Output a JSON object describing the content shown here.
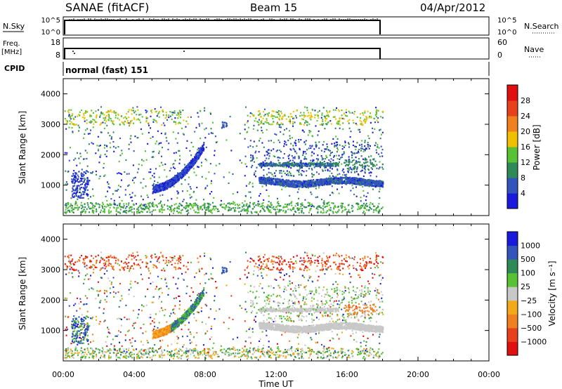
{
  "header": {
    "station": "SANAE (fitACF)",
    "beam": "Beam 15",
    "date": "04/Apr/2012"
  },
  "strips": {
    "nsky": {
      "left_label": "N.Sky",
      "right_label": "N.Search",
      "left_ticks": [
        "10^5",
        "10^0"
      ],
      "right_ticks": [
        "10^5",
        "10^0"
      ]
    },
    "freq": {
      "left_label_1": "Freq.",
      "left_label_2": "[MHz]",
      "right_label": "Nave",
      "left_ticks": [
        "18",
        "8"
      ],
      "right_ticks": [
        "60",
        "0"
      ]
    },
    "cpid": {
      "label": "CPID",
      "value": "normal (fast) 151"
    }
  },
  "colors": {
    "power": [
      "#1a1adc",
      "#3355bb",
      "#2e8b57",
      "#58c234",
      "#f0c000",
      "#f08020",
      "#e8401c",
      "#e01010"
    ],
    "velocity": [
      "#e01010",
      "#e8401c",
      "#f08020",
      "#f2aa1a",
      "#c8c8c8",
      "#58c234",
      "#2e8b57",
      "#3355bb",
      "#1a1adc"
    ]
  },
  "chart_data": [
    {
      "type": "heatmap",
      "title": "Power",
      "ylabel": "Slant Range [km]",
      "xlabel": "Time UT",
      "x_ticks": [
        "00:00",
        "04:00",
        "08:00",
        "12:00",
        "16:00",
        "20:00",
        "00:00"
      ],
      "y_ticks": [
        "1000",
        "2000",
        "3000",
        "4000"
      ],
      "ylim": [
        0,
        4500
      ],
      "xlim_hours": [
        0,
        24
      ],
      "colorbar": {
        "label": "Power [dB]",
        "ticks": [
          "4",
          "8",
          "12",
          "16",
          "20",
          "24",
          "28"
        ]
      },
      "features": [
        {
          "desc": "echo band rising",
          "x_hours": [
            5.0,
            7.9
          ],
          "y_km": [
            900,
            2200
          ]
        },
        {
          "desc": "far band",
          "x_hours": [
            11.0,
            18.0
          ],
          "y_km": [
            1100,
            1300
          ]
        },
        {
          "desc": "upper band",
          "x_hours": [
            11.0,
            15.5
          ],
          "y_km": [
            1700,
            1800
          ]
        }
      ]
    },
    {
      "type": "heatmap",
      "title": "Velocity",
      "ylabel": "Slant Range [km]",
      "xlabel": "Time UT",
      "x_ticks": [
        "00:00",
        "04:00",
        "08:00",
        "12:00",
        "16:00",
        "20:00",
        "00:00"
      ],
      "y_ticks": [
        "1000",
        "2000",
        "3000",
        "4000"
      ],
      "ylim": [
        0,
        4500
      ],
      "xlim_hours": [
        0,
        24
      ],
      "colorbar": {
        "label": "Velocity [m s⁻¹]",
        "ticks": [
          "1000",
          "500",
          "100",
          "25",
          "−25",
          "−100",
          "−500",
          "−1000"
        ]
      }
    }
  ],
  "time_axis": {
    "ticks": [
      "00:00",
      "04:00",
      "08:00",
      "12:00",
      "16:00",
      "20:00",
      "00:00"
    ],
    "label": "Time UT"
  }
}
